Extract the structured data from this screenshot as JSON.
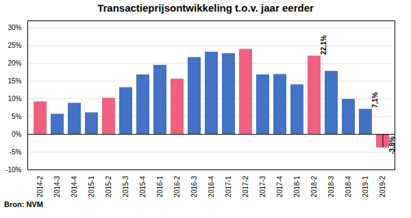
{
  "chart_data": {
    "type": "bar",
    "title": "Transactieprijsontwikkeling t.o.v. jaar eerder",
    "caption": "Bron: NVM",
    "categories": [
      "2014-2",
      "2014-3",
      "2014-4",
      "2015-1",
      "2015-2",
      "2015-3",
      "2015-4",
      "2016-1",
      "2016-2",
      "2016-3",
      "2016-4",
      "2017-1",
      "2017-2",
      "2017-3",
      "2017-4",
      "2018-1",
      "2018-2",
      "2018-3",
      "2018-4",
      "2019-1",
      "2019-2"
    ],
    "values": [
      9.2,
      5.7,
      8.8,
      6.1,
      10.2,
      13.2,
      16.8,
      19.5,
      15.6,
      21.7,
      23.2,
      22.8,
      24.0,
      16.8,
      16.9,
      14.0,
      22.1,
      17.8,
      9.9,
      7.1,
      -3.8
    ],
    "colors": [
      "#f06080",
      "#4472c4",
      "#4472c4",
      "#4472c4",
      "#f06080",
      "#4472c4",
      "#4472c4",
      "#4472c4",
      "#f06080",
      "#4472c4",
      "#4472c4",
      "#4472c4",
      "#f06080",
      "#4472c4",
      "#4472c4",
      "#4472c4",
      "#f06080",
      "#4472c4",
      "#4472c4",
      "#4472c4",
      "#f06080"
    ],
    "ylim": [
      -10,
      32
    ],
    "yticks": [
      {
        "value": -10,
        "label": "-10%"
      },
      {
        "value": -5,
        "label": "-5%"
      },
      {
        "value": 0,
        "label": "0%"
      },
      {
        "value": 5,
        "label": "5%"
      },
      {
        "value": 10,
        "label": "10%"
      },
      {
        "value": 15,
        "label": "15%"
      },
      {
        "value": 20,
        "label": "20%"
      },
      {
        "value": 25,
        "label": "25%"
      },
      {
        "value": 30,
        "label": "30%"
      }
    ],
    "grid": true,
    "annotations": [
      {
        "text": "22,1%",
        "category": "2018-2",
        "value": 22.1
      },
      {
        "text": "7,1%",
        "category": "2019-1",
        "value": 7.1
      },
      {
        "text": "-3,8%",
        "category": "2019-2",
        "value": -3.8
      }
    ]
  }
}
